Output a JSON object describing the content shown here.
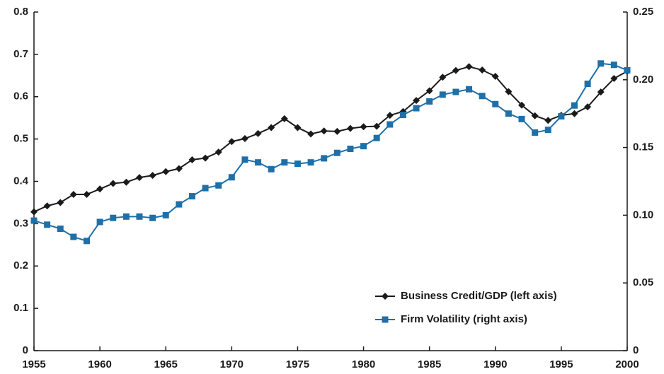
{
  "chart_data": {
    "type": "line",
    "x": [
      1955,
      1956,
      1957,
      1958,
      1959,
      1960,
      1961,
      1962,
      1963,
      1964,
      1965,
      1966,
      1967,
      1968,
      1969,
      1970,
      1971,
      1972,
      1973,
      1974,
      1975,
      1976,
      1977,
      1978,
      1979,
      1980,
      1981,
      1982,
      1983,
      1984,
      1985,
      1986,
      1987,
      1988,
      1989,
      1990,
      1991,
      1992,
      1993,
      1994,
      1995,
      1996,
      1997,
      1998,
      1999,
      2000
    ],
    "series": [
      {
        "name": "Business Credit/GDP (left axis)",
        "color": "#1a1a1a",
        "marker": "diamond",
        "values": [
          0.328,
          0.342,
          0.35,
          0.369,
          0.369,
          0.382,
          0.395,
          0.398,
          0.409,
          0.414,
          0.423,
          0.43,
          0.451,
          0.455,
          0.469,
          0.494,
          0.501,
          0.513,
          0.527,
          0.548,
          0.527,
          0.512,
          0.519,
          0.518,
          0.525,
          0.529,
          0.53,
          0.556,
          0.565,
          0.591,
          0.614,
          0.646,
          0.662,
          0.671,
          0.663,
          0.648,
          0.612,
          0.58,
          0.555,
          0.544,
          0.556,
          0.56,
          0.576,
          0.611,
          0.643,
          0.66
        ]
      },
      {
        "name": "Firm Volatility (right axis)",
        "color": "#1f6fa8",
        "marker": "square",
        "axis": "y2",
        "values": [
          0.096,
          0.093,
          0.09,
          0.084,
          0.081,
          0.095,
          0.098,
          0.099,
          0.099,
          0.098,
          0.1,
          0.108,
          0.114,
          0.12,
          0.122,
          0.128,
          0.141,
          0.139,
          0.134,
          0.139,
          0.138,
          0.139,
          0.142,
          0.146,
          0.149,
          0.151,
          0.157,
          0.167,
          0.174,
          0.179,
          0.184,
          0.189,
          0.191,
          0.193,
          0.188,
          0.182,
          0.175,
          0.171,
          0.161,
          0.163,
          0.173,
          0.181,
          0.197,
          0.212,
          0.211,
          0.207
        ]
      }
    ],
    "xlim": [
      1955,
      2000
    ],
    "xticks": [
      1955,
      1960,
      1965,
      1970,
      1975,
      1980,
      1985,
      1990,
      1995,
      2000
    ],
    "ylim": [
      0,
      0.8
    ],
    "yticks": [
      0,
      0.1,
      0.2,
      0.3,
      0.4,
      0.5,
      0.6,
      0.7,
      0.8
    ],
    "y2lim": [
      0,
      0.25
    ],
    "y2ticks": [
      0,
      0.05,
      {
        "value": 0.1,
        "label": "0.10"
      },
      0.15,
      {
        "value": 0.2,
        "label": "0.20"
      },
      0.25
    ],
    "grid": false,
    "legend": "bottom-right"
  }
}
